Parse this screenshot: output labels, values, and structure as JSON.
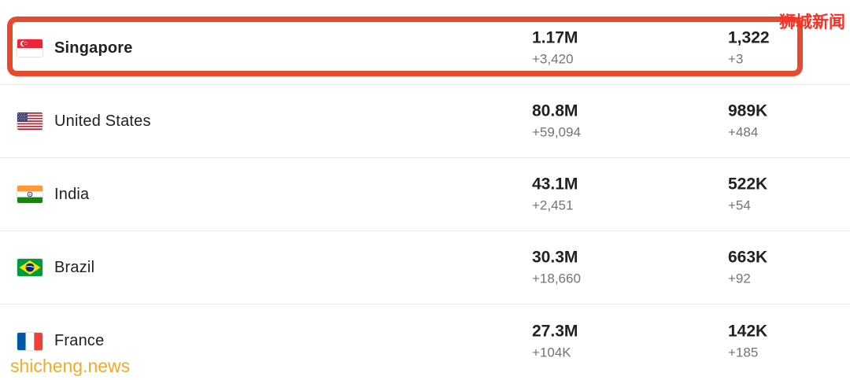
{
  "watermarks": {
    "top_right": "狮城新闻",
    "bottom_left": "shicheng.news"
  },
  "colors": {
    "highlight_border": "#e64a2e",
    "watermark_red": "#fe2d23",
    "watermark_orange": "#f7a928",
    "total_text": "#202124",
    "change_text": "#70757a",
    "divider": "#e8e8e8"
  },
  "table": {
    "rows": [
      {
        "country": "Singapore",
        "flag": "sg",
        "cases": "1.17M",
        "cases_change": "+3,420",
        "deaths": "1,322",
        "deaths_change": "+3",
        "highlighted": true
      },
      {
        "country": "United States",
        "flag": "us",
        "cases": "80.8M",
        "cases_change": "+59,094",
        "deaths": "989K",
        "deaths_change": "+484",
        "highlighted": false
      },
      {
        "country": "India",
        "flag": "in",
        "cases": "43.1M",
        "cases_change": "+2,451",
        "deaths": "522K",
        "deaths_change": "+54",
        "highlighted": false
      },
      {
        "country": "Brazil",
        "flag": "br",
        "cases": "30.3M",
        "cases_change": "+18,660",
        "deaths": "663K",
        "deaths_change": "+92",
        "highlighted": false
      },
      {
        "country": "France",
        "flag": "fr",
        "cases": "27.3M",
        "cases_change": "+104K",
        "deaths": "142K",
        "deaths_change": "+185",
        "highlighted": false
      }
    ]
  }
}
